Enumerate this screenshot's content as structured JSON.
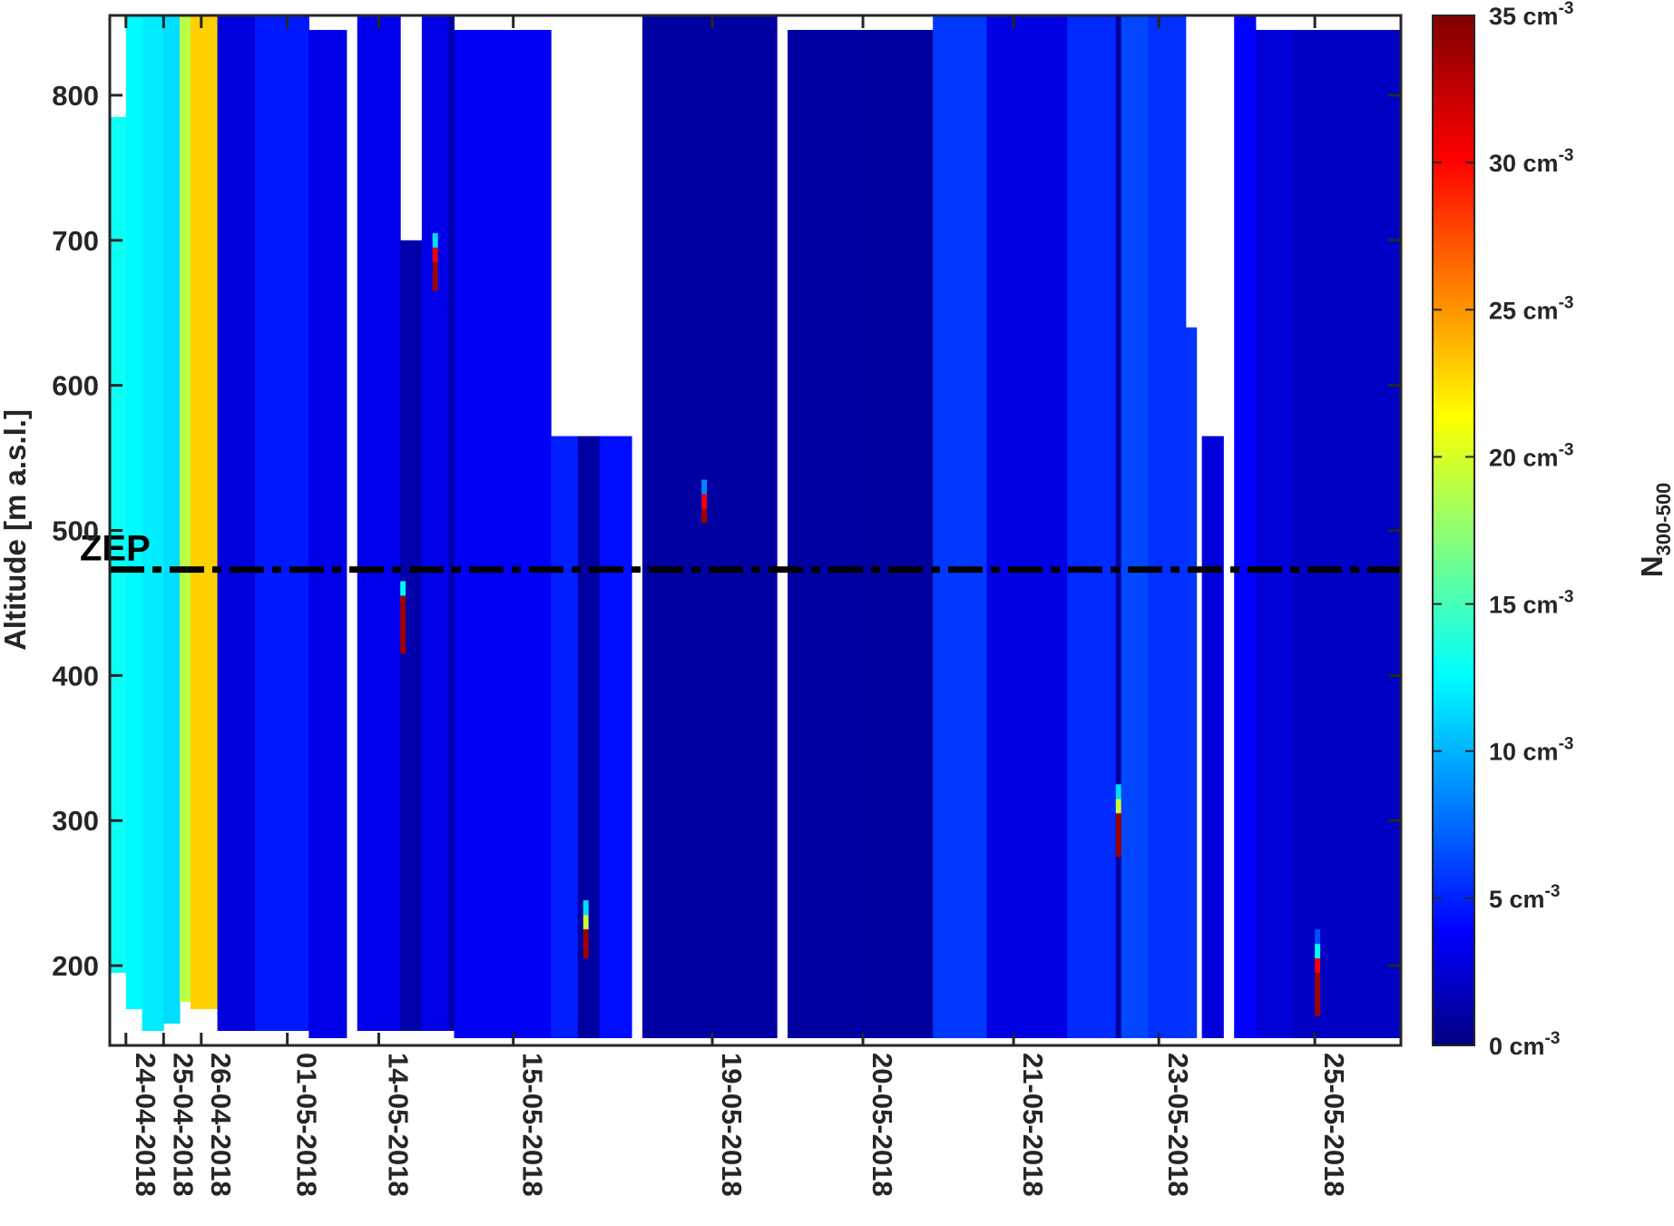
{
  "chart_data": {
    "type": "heatmap",
    "title": "",
    "ylabel": "Altitude [m a.s.l.]",
    "ylim": [
      145,
      855
    ],
    "yticks": [
      200,
      300,
      400,
      500,
      600,
      700,
      800
    ],
    "x_unit": "profile index",
    "xlim": [
      0,
      240
    ],
    "xtick_labels": [
      {
        "x": 3,
        "label": "24-04-2018"
      },
      {
        "x": 10,
        "label": "25-04-2018"
      },
      {
        "x": 17,
        "label": "26-04-2018"
      },
      {
        "x": 33,
        "label": "01-05-2018"
      },
      {
        "x": 50,
        "label": "14-05-2018"
      },
      {
        "x": 75,
        "label": "15-05-2018"
      },
      {
        "x": 112,
        "label": "19-05-2018"
      },
      {
        "x": 140,
        "label": "20-05-2018"
      },
      {
        "x": 168,
        "label": "21-05-2018"
      },
      {
        "x": 195,
        "label": "23-05-2018"
      },
      {
        "x": 224,
        "label": "25-05-2018"
      }
    ],
    "colorbar": {
      "label": "N",
      "label_subscript": "300-500",
      "range": [
        0,
        35
      ],
      "ticks": [
        "0 cm-3",
        "5 cm-3",
        "10 cm-3",
        "15 cm-3",
        "20 cm-3",
        "25 cm-3",
        "30 cm-3",
        "35 cm-3"
      ],
      "unit_base": "cm",
      "unit_exp": "-3",
      "colormap": "jet"
    },
    "reference_line": {
      "y": 473,
      "label": "ZEP",
      "style": "dash-dot",
      "color": "#000000"
    },
    "segments": [
      {
        "x": [
          0,
          3
        ],
        "ymin": 195,
        "ymax": 785,
        "value": 13.5
      },
      {
        "x": [
          3,
          6
        ],
        "ymin": 170,
        "ymax": 855,
        "value": 13.0
      },
      {
        "x": [
          6,
          10
        ],
        "ymin": 155,
        "ymax": 855,
        "value": 12.5
      },
      {
        "x": [
          10,
          13
        ],
        "ymin": 160,
        "ymax": 855,
        "value": 12.0
      },
      {
        "x": [
          13,
          15
        ],
        "ymin": 175,
        "ymax": 855,
        "value": 19.5
      },
      {
        "x": [
          15,
          20
        ],
        "ymin": 170,
        "ymax": 855,
        "value": 23.5
      },
      {
        "x": [
          20,
          27
        ],
        "ymin": 155,
        "ymax": 855,
        "value": 3.2
      },
      {
        "x": [
          27,
          37
        ],
        "ymin": 155,
        "ymax": 855,
        "value": 5.2
      },
      {
        "x": [
          37,
          44
        ],
        "ymin": 150,
        "ymax": 845,
        "value": 3.6
      },
      {
        "x": [
          46,
          54
        ],
        "ymin": 155,
        "ymax": 855,
        "value": 3.8
      },
      {
        "x": [
          54,
          58
        ],
        "ymin": 155,
        "ymax": 700,
        "value": 1.5
      },
      {
        "x": [
          58,
          63
        ],
        "ymin": 155,
        "ymax": 855,
        "value": 3.6
      },
      {
        "x": [
          63,
          64
        ],
        "ymin": 155,
        "ymax": 855,
        "value": 1.2
      },
      {
        "x": [
          64,
          82
        ],
        "ymin": 150,
        "ymax": 845,
        "value": 4.0
      },
      {
        "x": [
          82,
          87
        ],
        "ymin": 150,
        "ymax": 565,
        "value": 5.4
      },
      {
        "x": [
          87,
          91
        ],
        "ymin": 150,
        "ymax": 565,
        "value": 1.2
      },
      {
        "x": [
          91,
          97
        ],
        "ymin": 150,
        "ymax": 565,
        "value": 4.8
      },
      {
        "x": [
          99,
          124
        ],
        "ymin": 150,
        "ymax": 855,
        "value": 1.2
      },
      {
        "x": [
          126,
          141
        ],
        "ymin": 150,
        "ymax": 845,
        "value": 1.1
      },
      {
        "x": [
          141,
          153
        ],
        "ymin": 150,
        "ymax": 845,
        "value": 1.0
      },
      {
        "x": [
          153,
          163
        ],
        "ymin": 150,
        "ymax": 855,
        "value": 6.3
      },
      {
        "x": [
          163,
          178
        ],
        "ymin": 150,
        "ymax": 855,
        "value": 3.4
      },
      {
        "x": [
          178,
          187
        ],
        "ymin": 150,
        "ymax": 855,
        "value": 5.8
      },
      {
        "x": [
          187,
          188
        ],
        "ymin": 150,
        "ymax": 855,
        "value": 1.0
      },
      {
        "x": [
          188,
          193
        ],
        "ymin": 150,
        "ymax": 855,
        "value": 6.8
      },
      {
        "x": [
          193,
          200
        ],
        "ymin": 150,
        "ymax": 855,
        "value": 6.0
      },
      {
        "x": [
          200,
          202
        ],
        "ymin": 150,
        "ymax": 640,
        "value": 6.2
      },
      {
        "x": [
          203,
          207
        ],
        "ymin": 150,
        "ymax": 565,
        "value": 3.2
      },
      {
        "x": [
          209,
          213
        ],
        "ymin": 150,
        "ymax": 855,
        "value": 4.4
      },
      {
        "x": [
          213,
          220
        ],
        "ymin": 150,
        "ymax": 845,
        "value": 3.0
      },
      {
        "x": [
          220,
          240
        ],
        "ymin": 150,
        "ymax": 845,
        "value": 2.4
      }
    ],
    "spikes": [
      {
        "x": [
          54,
          55
        ],
        "ymin": 415,
        "ymax": 455,
        "value": 34
      },
      {
        "x": [
          54,
          55
        ],
        "ymin": 455,
        "ymax": 465,
        "value": 13
      },
      {
        "x": [
          60,
          61
        ],
        "ymin": 665,
        "ymax": 685,
        "value": 34
      },
      {
        "x": [
          60,
          61
        ],
        "ymin": 685,
        "ymax": 695,
        "value": 31
      },
      {
        "x": [
          60,
          61
        ],
        "ymin": 695,
        "ymax": 705,
        "value": 12
      },
      {
        "x": [
          88,
          89
        ],
        "ymin": 205,
        "ymax": 225,
        "value": 34
      },
      {
        "x": [
          88,
          89
        ],
        "ymin": 225,
        "ymax": 235,
        "value": 20
      },
      {
        "x": [
          88,
          89
        ],
        "ymin": 235,
        "ymax": 245,
        "value": 12
      },
      {
        "x": [
          110,
          111
        ],
        "ymin": 505,
        "ymax": 515,
        "value": 34
      },
      {
        "x": [
          110,
          111
        ],
        "ymin": 515,
        "ymax": 525,
        "value": 31
      },
      {
        "x": [
          110,
          111
        ],
        "ymin": 525,
        "ymax": 535,
        "value": 9
      },
      {
        "x": [
          187,
          188
        ],
        "ymin": 275,
        "ymax": 305,
        "value": 34
      },
      {
        "x": [
          187,
          188
        ],
        "ymin": 305,
        "ymax": 315,
        "value": 20
      },
      {
        "x": [
          187,
          188
        ],
        "ymin": 315,
        "ymax": 325,
        "value": 12
      },
      {
        "x": [
          224,
          225
        ],
        "ymin": 165,
        "ymax": 195,
        "value": 34
      },
      {
        "x": [
          224,
          225
        ],
        "ymin": 195,
        "ymax": 205,
        "value": 31
      },
      {
        "x": [
          224,
          225
        ],
        "ymin": 205,
        "ymax": 215,
        "value": 13
      },
      {
        "x": [
          224,
          225
        ],
        "ymin": 215,
        "ymax": 225,
        "value": 7
      }
    ]
  }
}
